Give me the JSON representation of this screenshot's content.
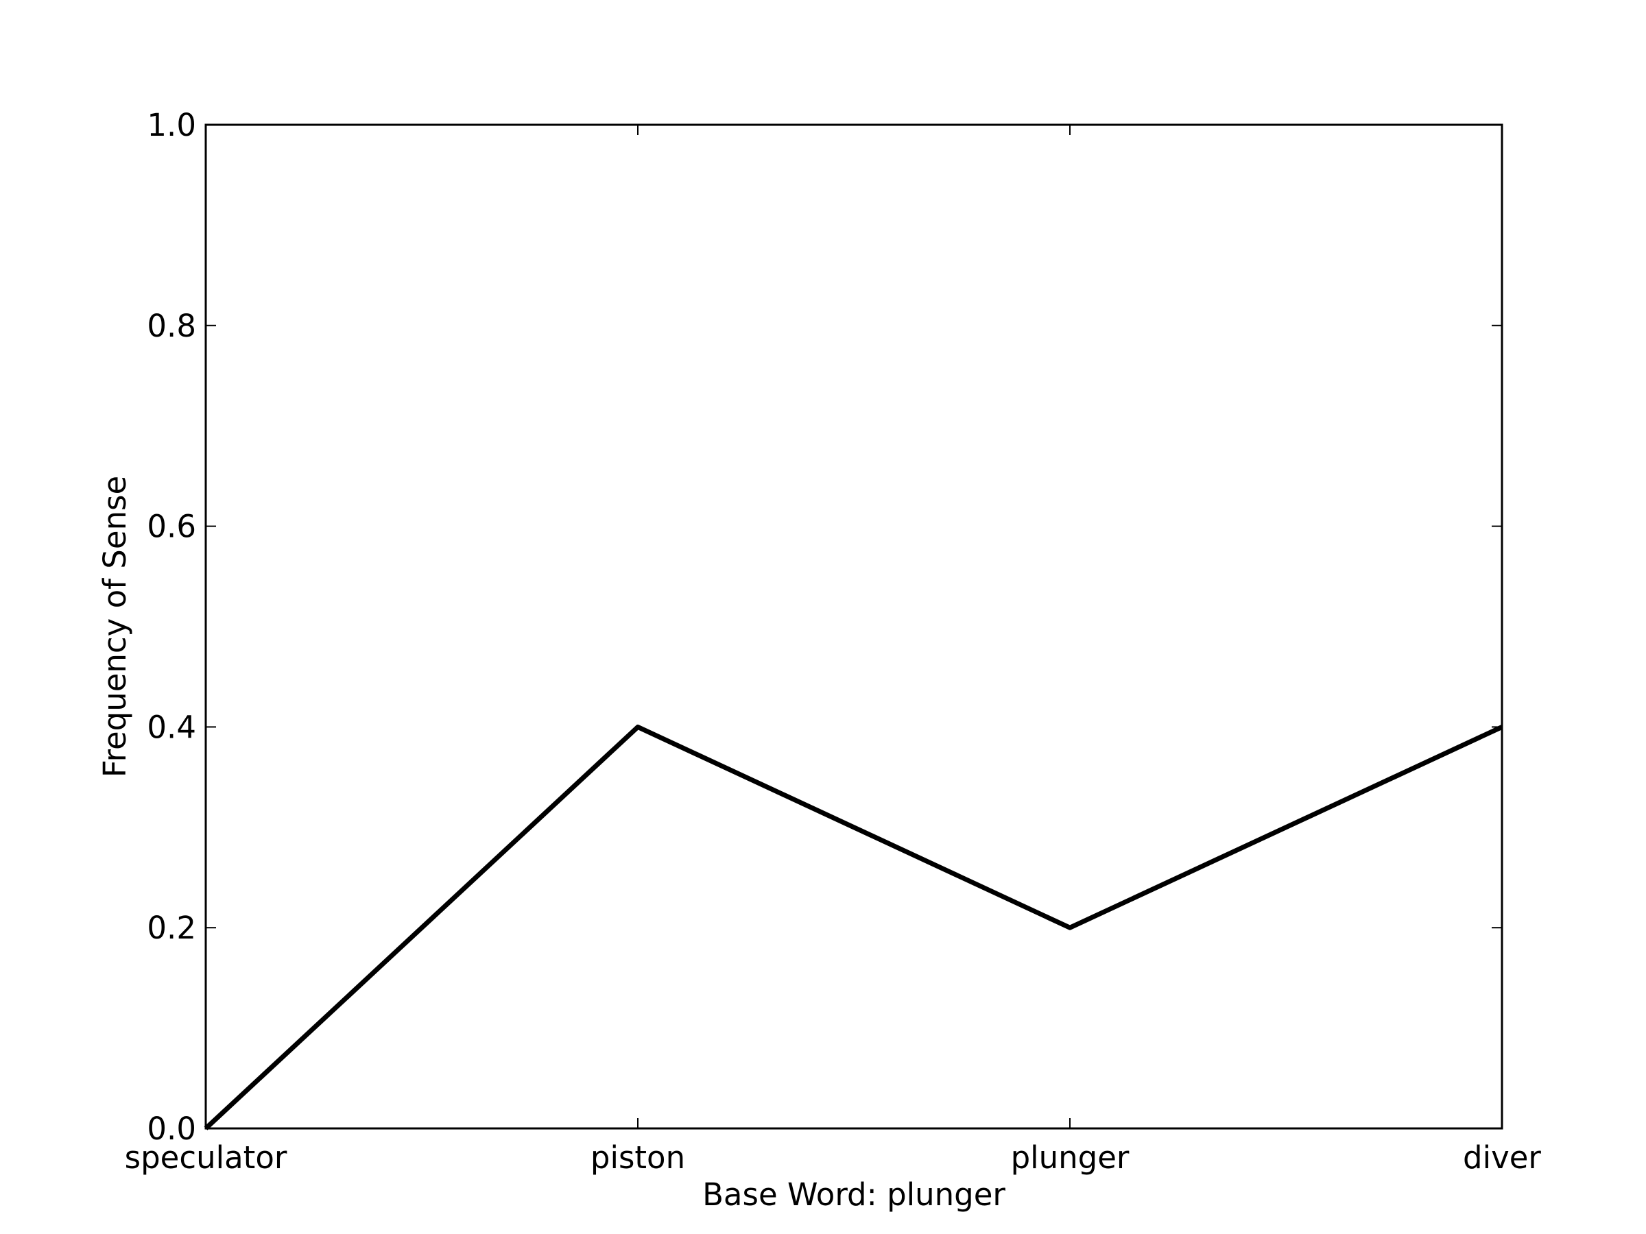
{
  "chart_data": {
    "type": "line",
    "categories": [
      "speculator",
      "piston",
      "plunger",
      "diver"
    ],
    "series": [
      {
        "values": [
          0.0,
          0.4,
          0.2,
          0.4
        ],
        "color": "#000000"
      }
    ],
    "xlabel": "Base Word: plunger",
    "ylabel": "Frequency of Sense",
    "ylim": [
      0.0,
      1.0
    ],
    "yticks": [
      "0.0",
      "0.2",
      "0.4",
      "0.6",
      "0.8",
      "1.0"
    ],
    "grid": false,
    "legend": "none"
  }
}
